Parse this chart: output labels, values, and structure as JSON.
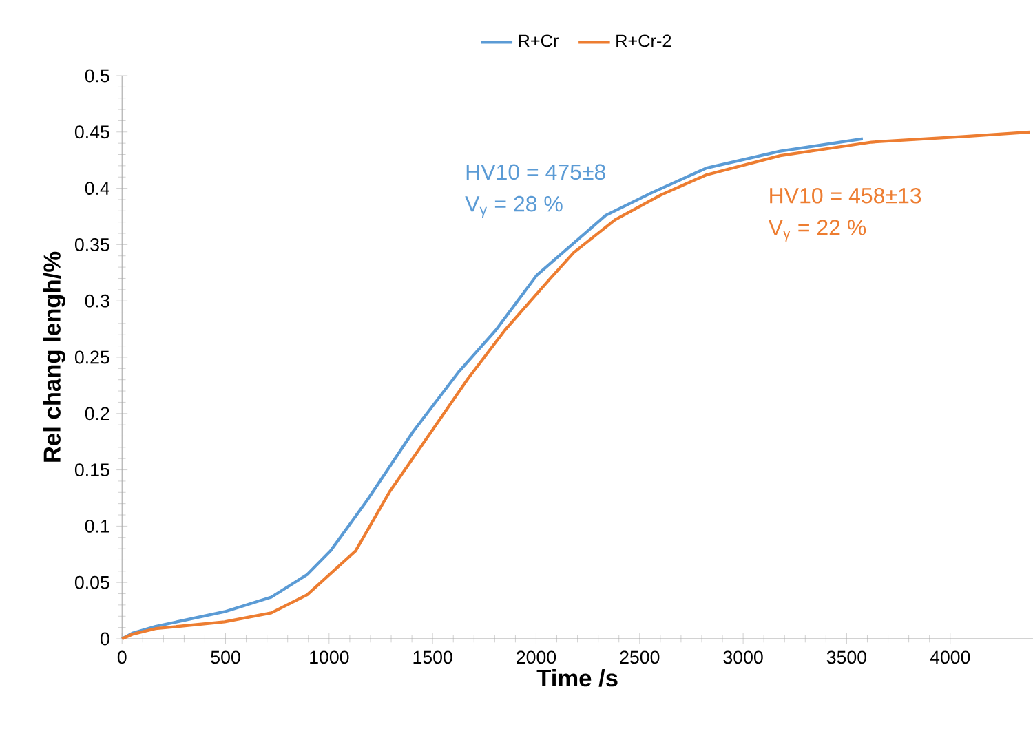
{
  "chart_data": {
    "type": "line",
    "xlabel": "Time /s",
    "ylabel": "Rel chang lengh/%",
    "xlim": [
      0,
      4400
    ],
    "xticks": [
      0,
      500,
      1000,
      1500,
      2000,
      2500,
      3000,
      3500,
      4000
    ],
    "ylim": [
      0,
      0.5
    ],
    "yticks": [
      0,
      0.05,
      0.1,
      0.15,
      0.2,
      0.25,
      0.3,
      0.35,
      0.4,
      0.45,
      0.5
    ],
    "grid": false,
    "legend": "top",
    "marker": "none",
    "line_style": "solid",
    "annotations": [
      "HV10 = 475±8",
      "V$_{γ}$ = 28 %",
      "HV10 = 458±13",
      "V$_{γ}$ = 22 %"
    ],
    "series": [
      {
        "name": "R+Cr",
        "color": "#5b9bd5",
        "x": [
          0,
          50,
          162,
          495,
          721,
          894,
          1007,
          1184,
          1406,
          1626,
          1805,
          2004,
          2336,
          2558,
          2823,
          3179,
          3578
        ],
        "values": [
          0,
          0.005,
          0.011,
          0.024,
          0.037,
          0.057,
          0.078,
          0.123,
          0.184,
          0.237,
          0.274,
          0.323,
          0.376,
          0.396,
          0.418,
          0.433,
          0.444
        ]
      },
      {
        "name": "R+Cr-2",
        "color": "#ed7d31",
        "x": [
          0,
          50,
          162,
          495,
          721,
          894,
          1128,
          1294,
          1494,
          1671,
          1849,
          2064,
          2182,
          2381,
          2602,
          2823,
          3179,
          3620,
          4066,
          4386
        ],
        "values": [
          0,
          0.004,
          0.009,
          0.015,
          0.023,
          0.039,
          0.078,
          0.131,
          0.184,
          0.231,
          0.274,
          0.319,
          0.343,
          0.372,
          0.394,
          0.412,
          0.429,
          0.441,
          0.446,
          0.45
        ]
      }
    ]
  }
}
